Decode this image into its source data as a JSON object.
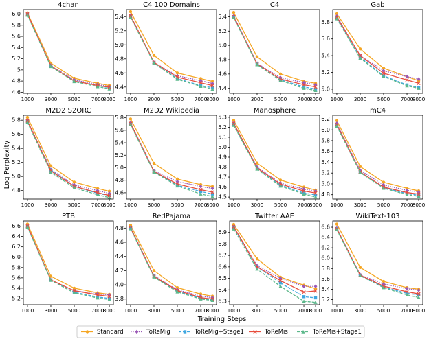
{
  "figure": {
    "xlabel": "Training Steps",
    "ylabel": "Log Perplexity"
  },
  "chart_data": [
    {
      "type": "line",
      "title": "4chan",
      "x": [
        1000,
        3000,
        5000,
        7000,
        8000
      ],
      "xlim": [
        650,
        8350
      ],
      "xticks": [
        1000,
        3000,
        5000,
        7000,
        8000
      ],
      "ylim": [
        4.58,
        6.08
      ],
      "yticks": [
        4.6,
        4.8,
        5.0,
        5.2,
        5.4,
        5.6,
        5.8,
        {
          "value": 6,
          "label": "6.0"
        }
      ],
      "series": [
        {
          "name": "Standard",
          "color": "#f5a623",
          "values": [
            6.02,
            5.12,
            4.85,
            4.76,
            4.72
          ]
        },
        {
          "name": "ToReMig",
          "color": "#9b59b6",
          "values": [
            6.0,
            5.08,
            4.82,
            4.74,
            4.7
          ]
        },
        {
          "name": "ToReMig+Stage1",
          "color": "#3fa7e0",
          "values": [
            5.99,
            5.07,
            4.8,
            4.72,
            4.68
          ]
        },
        {
          "name": "ToReMis",
          "color": "#e74c3c",
          "values": [
            6.0,
            5.07,
            4.8,
            4.72,
            4.69
          ]
        },
        {
          "name": "ToReMis+Stage1",
          "color": "#5cb88b",
          "values": [
            5.98,
            5.06,
            4.79,
            4.7,
            4.66
          ]
        }
      ]
    },
    {
      "type": "line",
      "title": "C4 100 Domains",
      "x": [
        1000,
        3000,
        5000,
        7000,
        8000
      ],
      "xlim": [
        650,
        8350
      ],
      "xticks": [
        1000,
        3000,
        5000,
        7000,
        8000
      ],
      "ylim": [
        4.31,
        5.5
      ],
      "yticks": [
        4.4,
        4.6,
        4.8,
        {
          "value": 5,
          "label": "5.0"
        },
        5.2,
        5.4
      ],
      "series": [
        {
          "name": "Standard",
          "color": "#f5a623",
          "values": [
            5.47,
            4.85,
            4.6,
            4.52,
            4.48
          ]
        },
        {
          "name": "ToReMig",
          "color": "#9b59b6",
          "values": [
            5.42,
            4.75,
            4.56,
            4.49,
            4.45
          ]
        },
        {
          "name": "ToReMig+Stage1",
          "color": "#3fa7e0",
          "values": [
            5.4,
            4.74,
            4.52,
            4.42,
            4.39
          ]
        },
        {
          "name": "ToReMis",
          "color": "#e74c3c",
          "values": [
            5.41,
            4.75,
            4.54,
            4.46,
            4.42
          ]
        },
        {
          "name": "ToReMis+Stage1",
          "color": "#5cb88b",
          "values": [
            5.39,
            4.74,
            4.51,
            4.41,
            4.37
          ]
        }
      ]
    },
    {
      "type": "line",
      "title": "C4",
      "x": [
        1000,
        3000,
        5000,
        7000,
        8000
      ],
      "xlim": [
        650,
        8350
      ],
      "xticks": [
        1000,
        3000,
        5000,
        7000,
        8000
      ],
      "ylim": [
        4.33,
        5.5
      ],
      "yticks": [
        4.4,
        4.6,
        4.8,
        {
          "value": 5,
          "label": "5.0"
        },
        5.2,
        5.4
      ],
      "series": [
        {
          "name": "Standard",
          "color": "#f5a623",
          "values": [
            5.46,
            4.84,
            4.6,
            4.5,
            4.47
          ]
        },
        {
          "name": "ToReMig",
          "color": "#9b59b6",
          "values": [
            5.41,
            4.75,
            4.55,
            4.48,
            4.45
          ]
        },
        {
          "name": "ToReMig+Stage1",
          "color": "#3fa7e0",
          "values": [
            5.39,
            4.74,
            4.52,
            4.42,
            4.39
          ]
        },
        {
          "name": "ToReMis",
          "color": "#e74c3c",
          "values": [
            5.4,
            4.74,
            4.53,
            4.45,
            4.42
          ]
        },
        {
          "name": "ToReMis+Stage1",
          "color": "#5cb88b",
          "values": [
            5.39,
            4.73,
            4.51,
            4.4,
            4.37
          ]
        }
      ]
    },
    {
      "type": "line",
      "title": "Gab",
      "x": [
        1000,
        3000,
        5000,
        7000,
        8000
      ],
      "xlim": [
        650,
        8350
      ],
      "xticks": [
        1000,
        3000,
        5000,
        7000,
        8000
      ],
      "ylim": [
        4.95,
        5.95
      ],
      "yticks": [
        {
          "value": 5,
          "label": "5.0"
        },
        5.2,
        5.4,
        5.6,
        5.8
      ],
      "series": [
        {
          "name": "Standard",
          "color": "#f5a623",
          "values": [
            5.9,
            5.48,
            5.25,
            5.15,
            5.1
          ]
        },
        {
          "name": "ToReMig",
          "color": "#9b59b6",
          "values": [
            5.87,
            5.4,
            5.22,
            5.15,
            5.12
          ]
        },
        {
          "name": "ToReMig+Stage1",
          "color": "#3fa7e0",
          "values": [
            5.85,
            5.38,
            5.16,
            5.05,
            5.02
          ]
        },
        {
          "name": "ToReMis",
          "color": "#e74c3c",
          "values": [
            5.86,
            5.4,
            5.19,
            5.11,
            5.07
          ]
        },
        {
          "name": "ToReMis+Stage1",
          "color": "#5cb88b",
          "values": [
            5.84,
            5.37,
            5.15,
            5.04,
            5.01
          ]
        }
      ]
    },
    {
      "type": "line",
      "title": "M2D2 S2ORC",
      "x": [
        1000,
        3000,
        5000,
        7000,
        8000
      ],
      "xlim": [
        650,
        8350
      ],
      "xticks": [
        1000,
        3000,
        5000,
        7000,
        8000
      ],
      "ylim": [
        4.68,
        5.87
      ],
      "yticks": [
        4.8,
        {
          "value": 5,
          "label": "5.0"
        },
        5.2,
        5.4,
        5.6,
        5.8
      ],
      "series": [
        {
          "name": "Standard",
          "color": "#f5a623",
          "values": [
            5.84,
            5.15,
            4.92,
            4.83,
            4.79
          ]
        },
        {
          "name": "ToReMig",
          "color": "#9b59b6",
          "values": [
            5.8,
            5.1,
            4.88,
            4.8,
            4.76
          ]
        },
        {
          "name": "ToReMig+Stage1",
          "color": "#3fa7e0",
          "values": [
            5.78,
            5.09,
            4.86,
            4.76,
            4.73
          ]
        },
        {
          "name": "ToReMis",
          "color": "#e74c3c",
          "values": [
            5.79,
            5.08,
            4.86,
            4.77,
            4.73
          ]
        },
        {
          "name": "ToReMis+Stage1",
          "color": "#5cb88b",
          "values": [
            5.77,
            5.06,
            4.84,
            4.74,
            4.7
          ]
        }
      ]
    },
    {
      "type": "line",
      "title": "M2D2 Wikipedia",
      "x": [
        1000,
        3000,
        5000,
        7000,
        8000
      ],
      "xlim": [
        650,
        8350
      ],
      "xticks": [
        1000,
        3000,
        5000,
        7000,
        8000
      ],
      "ylim": [
        4.5,
        5.84
      ],
      "yticks": [
        4.6,
        4.8,
        {
          "value": 5,
          "label": "5.0"
        },
        5.2,
        5.4,
        5.6,
        5.8
      ],
      "series": [
        {
          "name": "Standard",
          "color": "#f5a623",
          "values": [
            5.78,
            5.07,
            4.82,
            4.73,
            4.7
          ]
        },
        {
          "name": "ToReMig",
          "color": "#9b59b6",
          "values": [
            5.72,
            4.95,
            4.78,
            4.7,
            4.67
          ]
        },
        {
          "name": "ToReMig+Stage1",
          "color": "#3fa7e0",
          "values": [
            5.7,
            4.94,
            4.72,
            4.62,
            4.58
          ]
        },
        {
          "name": "ToReMis",
          "color": "#e74c3c",
          "values": [
            5.71,
            4.94,
            4.74,
            4.65,
            4.61
          ]
        },
        {
          "name": "ToReMis+Stage1",
          "color": "#5cb88b",
          "values": [
            5.69,
            4.93,
            4.71,
            4.58,
            4.54
          ]
        }
      ]
    },
    {
      "type": "line",
      "title": "Manosphere",
      "x": [
        1000,
        3000,
        5000,
        7000,
        8000
      ],
      "xlim": [
        650,
        8350
      ],
      "xticks": [
        1000,
        3000,
        5000,
        7000,
        8000
      ],
      "ylim": [
        4.48,
        5.32
      ],
      "yticks": [
        4.5,
        4.6,
        4.7,
        4.8,
        4.9,
        {
          "value": 5,
          "label": "5.0"
        },
        5.1,
        5.2,
        5.3
      ],
      "series": [
        {
          "name": "Standard",
          "color": "#f5a623",
          "values": [
            5.27,
            4.84,
            4.67,
            4.6,
            4.57
          ]
        },
        {
          "name": "ToReMig",
          "color": "#9b59b6",
          "values": [
            5.24,
            4.8,
            4.64,
            4.58,
            4.56
          ]
        },
        {
          "name": "ToReMig+Stage1",
          "color": "#3fa7e0",
          "values": [
            5.23,
            4.79,
            4.62,
            4.54,
            4.52
          ]
        },
        {
          "name": "ToReMis",
          "color": "#e74c3c",
          "values": [
            5.24,
            4.79,
            4.63,
            4.56,
            4.54
          ]
        },
        {
          "name": "ToReMis+Stage1",
          "color": "#5cb88b",
          "values": [
            5.22,
            4.78,
            4.61,
            4.53,
            4.5
          ]
        }
      ]
    },
    {
      "type": "line",
      "title": "mC4",
      "x": [
        1000,
        3000,
        5000,
        7000,
        8000
      ],
      "xlim": [
        650,
        8350
      ],
      "xticks": [
        1000,
        3000,
        5000,
        7000,
        8000
      ],
      "ylim": [
        4.72,
        6.27
      ],
      "yticks": [
        4.8,
        {
          "value": 5,
          "label": "5.0"
        },
        5.2,
        5.4,
        5.6,
        5.8,
        {
          "value": 6,
          "label": "6.0"
        },
        6.2
      ],
      "series": [
        {
          "name": "Standard",
          "color": "#f5a623",
          "values": [
            6.17,
            5.32,
            5.03,
            4.92,
            4.87
          ]
        },
        {
          "name": "ToReMig",
          "color": "#9b59b6",
          "values": [
            6.12,
            5.25,
            4.98,
            4.88,
            4.85
          ]
        },
        {
          "name": "ToReMig+Stage1",
          "color": "#3fa7e0",
          "values": [
            6.09,
            5.22,
            4.93,
            4.82,
            4.79
          ]
        },
        {
          "name": "ToReMis",
          "color": "#e74c3c",
          "values": [
            6.1,
            5.22,
            4.94,
            4.84,
            4.81
          ]
        },
        {
          "name": "ToReMis+Stage1",
          "color": "#5cb88b",
          "values": [
            6.07,
            5.21,
            4.92,
            4.8,
            4.77
          ]
        }
      ]
    },
    {
      "type": "line",
      "title": "PTB",
      "x": [
        1000,
        3000,
        5000,
        7000,
        8000
      ],
      "xlim": [
        650,
        8350
      ],
      "xticks": [
        1000,
        3000,
        5000,
        7000,
        8000
      ],
      "ylim": [
        5.08,
        6.7
      ],
      "yticks": [
        5.2,
        5.4,
        5.6,
        5.8,
        {
          "value": 6,
          "label": "6.0"
        },
        6.2,
        6.4,
        6.6
      ],
      "series": [
        {
          "name": "Standard",
          "color": "#f5a623",
          "values": [
            6.64,
            5.63,
            5.4,
            5.31,
            5.28
          ]
        },
        {
          "name": "ToReMig",
          "color": "#9b59b6",
          "values": [
            6.6,
            5.56,
            5.35,
            5.29,
            5.27
          ]
        },
        {
          "name": "ToReMig+Stage1",
          "color": "#3fa7e0",
          "values": [
            6.59,
            5.56,
            5.32,
            5.23,
            5.2
          ]
        },
        {
          "name": "ToReMis",
          "color": "#e74c3c",
          "values": [
            6.6,
            5.56,
            5.35,
            5.27,
            5.24
          ]
        },
        {
          "name": "ToReMis+Stage1",
          "color": "#5cb88b",
          "values": [
            6.58,
            5.55,
            5.31,
            5.21,
            5.18
          ]
        }
      ]
    },
    {
      "type": "line",
      "title": "RedPajama",
      "x": [
        1000,
        3000,
        5000,
        7000,
        8000
      ],
      "xlim": [
        650,
        8350
      ],
      "xticks": [
        1000,
        3000,
        5000,
        7000,
        8000
      ],
      "ylim": [
        3.72,
        4.9
      ],
      "yticks": [
        3.8,
        {
          "value": 4,
          "label": "4.0"
        },
        4.2,
        4.4,
        4.6,
        4.8
      ],
      "series": [
        {
          "name": "Standard",
          "color": "#f5a623",
          "values": [
            4.84,
            4.2,
            3.96,
            3.87,
            3.84
          ]
        },
        {
          "name": "ToReMig",
          "color": "#9b59b6",
          "values": [
            4.81,
            4.13,
            3.93,
            3.84,
            3.82
          ]
        },
        {
          "name": "ToReMig+Stage1",
          "color": "#3fa7e0",
          "values": [
            4.8,
            4.12,
            3.91,
            3.81,
            3.79
          ]
        },
        {
          "name": "ToReMis",
          "color": "#e74c3c",
          "values": [
            4.8,
            4.12,
            3.92,
            3.82,
            3.8
          ]
        },
        {
          "name": "ToReMis+Stage1",
          "color": "#5cb88b",
          "values": [
            4.79,
            4.11,
            3.9,
            3.8,
            3.78
          ]
        }
      ]
    },
    {
      "type": "line",
      "title": "Twitter AAE",
      "x": [
        1000,
        3000,
        5000,
        7000,
        8000
      ],
      "xlim": [
        650,
        8350
      ],
      "xticks": [
        1000,
        3000,
        5000,
        7000,
        8000
      ],
      "ylim": [
        6.27,
        7.0
      ],
      "yticks": [
        6.3,
        6.4,
        6.5,
        6.6,
        6.7,
        6.8,
        6.9
      ],
      "series": [
        {
          "name": "Standard",
          "color": "#f5a623",
          "values": [
            6.97,
            6.67,
            6.51,
            6.44,
            6.41
          ]
        },
        {
          "name": "ToReMig",
          "color": "#9b59b6",
          "values": [
            6.95,
            6.61,
            6.5,
            6.43,
            6.43
          ]
        },
        {
          "name": "ToReMig+Stage1",
          "color": "#3fa7e0",
          "values": [
            6.94,
            6.6,
            6.46,
            6.34,
            6.33
          ]
        },
        {
          "name": "ToReMis",
          "color": "#e74c3c",
          "values": [
            6.95,
            6.6,
            6.48,
            6.38,
            6.39
          ]
        },
        {
          "name": "ToReMis+Stage1",
          "color": "#5cb88b",
          "values": [
            6.93,
            6.58,
            6.43,
            6.3,
            6.29
          ]
        }
      ]
    },
    {
      "type": "line",
      "title": "WikiText-103",
      "x": [
        1000,
        3000,
        5000,
        7000,
        8000
      ],
      "xlim": [
        650,
        8350
      ],
      "xticks": [
        1000,
        3000,
        5000,
        7000,
        8000
      ],
      "ylim": [
        5.1,
        6.72
      ],
      "yticks": [
        5.2,
        5.4,
        5.6,
        5.8,
        {
          "value": 6,
          "label": "6.0"
        },
        6.2,
        6.4,
        6.6
      ],
      "series": [
        {
          "name": "Standard",
          "color": "#f5a623",
          "values": [
            6.66,
            5.82,
            5.55,
            5.43,
            5.4
          ]
        },
        {
          "name": "ToReMig",
          "color": "#9b59b6",
          "values": [
            6.58,
            5.68,
            5.5,
            5.41,
            5.38
          ]
        },
        {
          "name": "ToReMig+Stage1",
          "color": "#3fa7e0",
          "values": [
            6.57,
            5.67,
            5.44,
            5.32,
            5.29
          ]
        },
        {
          "name": "ToReMis",
          "color": "#e74c3c",
          "values": [
            6.57,
            5.67,
            5.46,
            5.35,
            5.31
          ]
        },
        {
          "name": "ToReMis+Stage1",
          "color": "#5cb88b",
          "values": [
            6.55,
            5.66,
            5.43,
            5.29,
            5.24
          ]
        }
      ]
    }
  ]
}
